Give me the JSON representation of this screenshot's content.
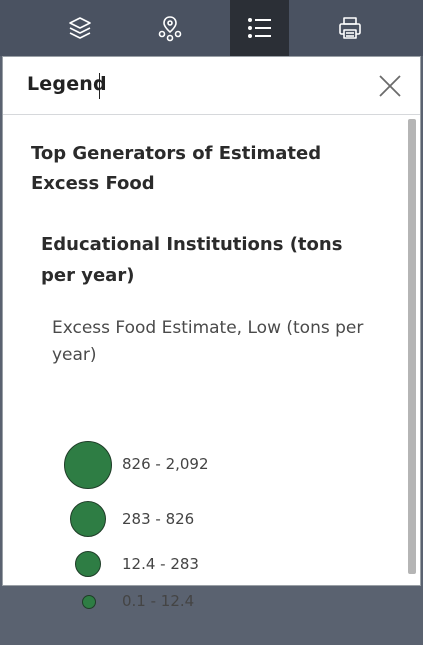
{
  "toolbar": {
    "tools": [
      {
        "name": "layers",
        "icon": "layers-icon",
        "active": false
      },
      {
        "name": "basemap",
        "icon": "basemap-gallery-icon",
        "active": false
      },
      {
        "name": "legend",
        "icon": "legend-list-icon",
        "active": true
      },
      {
        "name": "print",
        "icon": "printer-icon",
        "active": false
      }
    ]
  },
  "panel": {
    "title": "Legend",
    "close_icon": "close-icon"
  },
  "legend": {
    "layer_title": "Top Generators of Estimated Excess Food",
    "sublayer_title": "Educational Institutions (tons per year)",
    "field_title": "Excess Food Estimate, Low (tons per year)",
    "symbol_color": "#2e7d44",
    "classes": [
      {
        "label": "826 - 2,092"
      },
      {
        "label": "283 - 826"
      },
      {
        "label": "12.4 - 283"
      },
      {
        "label": "0.1 - 12.4"
      }
    ]
  }
}
